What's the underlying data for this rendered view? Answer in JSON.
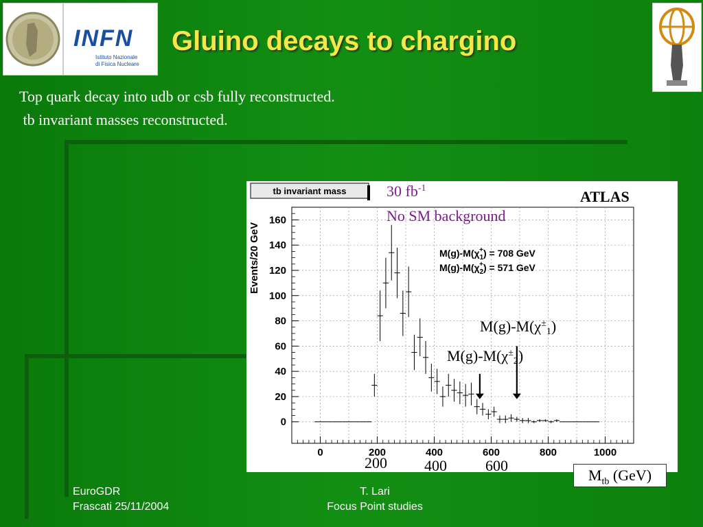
{
  "slide": {
    "title": "Gluino decays to chargino",
    "body_line1": "Top quark decay into udb or csb fully reconstructed.",
    "body_line2": " tb invariant masses reconstructed.",
    "footer_left_line1": "EuroGDR",
    "footer_left_line2": "Frascati 25/11/2004",
    "footer_center_line1": "T. Lari",
    "footer_center_line2": "Focus Point studies",
    "logo_infn": "INFN",
    "logo_infn_sub1": "Istituto Nazionale",
    "logo_infn_sub2": "di Fisica Nucleare"
  },
  "chart_data": {
    "type": "scatter",
    "title": "tb invariant mass",
    "ylabel": "Events/20 GeV",
    "xlim": [
      -100,
      1100
    ],
    "ylim": [
      -17,
      170
    ],
    "x_ticks": [
      0,
      200,
      400,
      600,
      800,
      1000
    ],
    "y_ticks": [
      0,
      20,
      40,
      60,
      80,
      100,
      120,
      140,
      160
    ],
    "x_tick_labels": [
      "0",
      "200",
      "400",
      "600",
      "800",
      "1000"
    ],
    "y_tick_labels": [
      "0",
      "20",
      "40",
      "60",
      "80",
      "100",
      "120",
      "140",
      "160"
    ],
    "grid": true,
    "luminosity_label": "30 fb",
    "luminosity_sup": "-1",
    "background_label": "No SM background",
    "experiment_label": "ATLAS",
    "legend_line1": "M(g)-M(χ",
    "legend_line1_sub": "1",
    "legend_line1_sup": "+",
    "legend_line1_val": ") = 708 GeV",
    "legend_line2": "M(g)-M(χ",
    "legend_line2_sub": "2",
    "legend_line2_sup": "+",
    "legend_line2_val": ") = 571 GeV",
    "annotation1_prefix": "M(g)-M(χ",
    "annotation1_sup": "±",
    "annotation1_sub": "1",
    "annotation1_suffix": ")",
    "annotation2_prefix": "M(g)-M(χ",
    "annotation2_sup": "±",
    "annotation2_sub": "2",
    "annotation2_suffix": ")",
    "arrows": [
      {
        "x": 560,
        "y_from": 38,
        "y_to": 18
      },
      {
        "x": 690,
        "y_from": 60,
        "y_to": 18
      }
    ],
    "overlay_x_labels": [
      "200",
      "400",
      "600"
    ],
    "xlabel_main": "M",
    "xlabel_sub": "tb",
    "xlabel_unit": " (GeV)",
    "series": [
      {
        "points": [
          {
            "x": 190,
            "y": 29,
            "err": 9
          },
          {
            "x": 210,
            "y": 84,
            "err": 20
          },
          {
            "x": 230,
            "y": 110,
            "err": 20
          },
          {
            "x": 250,
            "y": 134,
            "err": 22
          },
          {
            "x": 270,
            "y": 118,
            "err": 20
          },
          {
            "x": 290,
            "y": 86,
            "err": 18
          },
          {
            "x": 310,
            "y": 103,
            "err": 20
          },
          {
            "x": 330,
            "y": 55,
            "err": 14
          },
          {
            "x": 350,
            "y": 67,
            "err": 15
          },
          {
            "x": 370,
            "y": 51,
            "err": 13
          },
          {
            "x": 390,
            "y": 35,
            "err": 11
          },
          {
            "x": 410,
            "y": 32,
            "err": 10
          },
          {
            "x": 430,
            "y": 20,
            "err": 8
          },
          {
            "x": 450,
            "y": 29,
            "err": 9
          },
          {
            "x": 470,
            "y": 25,
            "err": 9
          },
          {
            "x": 490,
            "y": 23,
            "err": 9
          },
          {
            "x": 510,
            "y": 21,
            "err": 9
          },
          {
            "x": 530,
            "y": 22,
            "err": 9
          },
          {
            "x": 550,
            "y": 12,
            "err": 6
          },
          {
            "x": 570,
            "y": 10,
            "err": 5
          },
          {
            "x": 590,
            "y": 6,
            "err": 4
          },
          {
            "x": 610,
            "y": 8,
            "err": 4
          },
          {
            "x": 630,
            "y": 2,
            "err": 3
          },
          {
            "x": 650,
            "y": 2,
            "err": 3
          },
          {
            "x": 670,
            "y": 3,
            "err": 3
          },
          {
            "x": 690,
            "y": 2,
            "err": 2
          },
          {
            "x": 710,
            "y": 1,
            "err": 2
          },
          {
            "x": 730,
            "y": 1,
            "err": 2
          },
          {
            "x": 750,
            "y": 0,
            "err": 1
          },
          {
            "x": 770,
            "y": 1,
            "err": 1
          },
          {
            "x": 790,
            "y": 1,
            "err": 1
          },
          {
            "x": 810,
            "y": 0,
            "err": 1
          },
          {
            "x": 830,
            "y": 1,
            "err": 1
          }
        ]
      }
    ],
    "empty_bins_left": [
      -10,
      10,
      30,
      50,
      70,
      90,
      110,
      130,
      150,
      170
    ],
    "empty_bins_right": [
      850,
      870,
      890,
      910,
      930,
      950,
      970
    ]
  }
}
